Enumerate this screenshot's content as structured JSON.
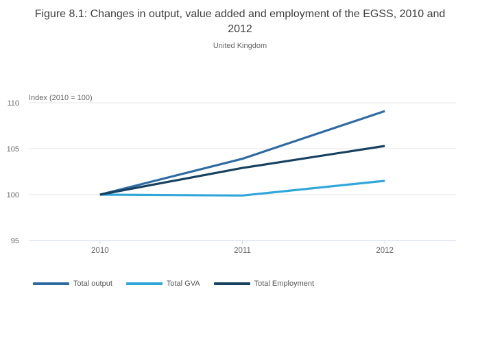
{
  "header": {
    "title": "Figure 8.1: Changes in output, value added and employment of the EGSS, 2010 and 2012",
    "subtitle": "United Kingdom"
  },
  "chart_data": {
    "type": "line",
    "x": [
      2010,
      2011,
      2012
    ],
    "x_tick_labels": [
      "2010",
      "2011",
      "2012"
    ],
    "series": [
      {
        "name": "Total output",
        "values": [
          100,
          103.9,
          109.1
        ],
        "color": "#2e6ba3"
      },
      {
        "name": "Total GVA",
        "values": [
          100,
          99.9,
          101.5
        ],
        "color": "#31a6d9"
      },
      {
        "name": "Total Employment",
        "values": [
          100,
          102.9,
          105.3
        ],
        "color": "#16415f"
      }
    ],
    "yaxis": {
      "title": "Index (2010 = 100)",
      "tick_values": [
        95,
        100,
        105,
        110
      ],
      "tick_labels": [
        "95",
        "100",
        "105",
        "110"
      ],
      "range": [
        95,
        110
      ]
    },
    "xaxis": {
      "range": [
        2009.5,
        2012.5
      ]
    },
    "grid": true,
    "legend_position": "bottom-left",
    "style": {
      "gridline_color": "#e6e6e6",
      "axis_line_color": "#ccd6eb",
      "tick_text_color": "#666666",
      "axis_title_color": "#666666",
      "line_width": 3.2
    }
  }
}
